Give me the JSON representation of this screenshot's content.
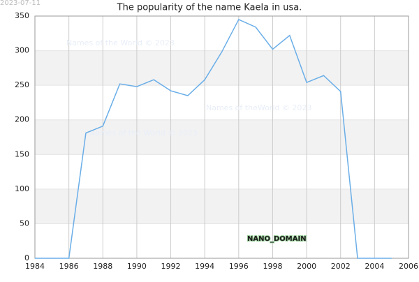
{
  "chart_data": {
    "type": "line",
    "title": "The popularity of the name Kaela in usa.",
    "x": [
      1984,
      1985,
      1986,
      1987,
      1988,
      1989,
      1990,
      1991,
      1992,
      1993,
      1994,
      1995,
      1996,
      1997,
      1998,
      1999,
      2000,
      2001,
      2002,
      2003,
      2004,
      2005
    ],
    "series": [
      {
        "name": "Kaela",
        "color": "#6aaee8",
        "values": [
          0,
          0,
          0,
          181,
          191,
          252,
          248,
          258,
          242,
          235,
          258,
          298,
          345,
          334,
          302,
          322,
          254,
          264,
          241,
          0,
          0,
          0
        ]
      }
    ],
    "xlim": [
      1984,
      2006
    ],
    "xticks": [
      1984,
      1986,
      1988,
      1990,
      1992,
      1994,
      1996,
      1998,
      2000,
      2002,
      2004,
      2006
    ],
    "ylim": [
      0,
      350
    ],
    "yticks": [
      0,
      50,
      100,
      150,
      200,
      250,
      300,
      350
    ],
    "grid": true,
    "annotations": [
      "2023-07-11",
      "Names of the World © 2023",
      "Names of theWorld © 2023",
      "Names of the World © 2023",
      "NANO_DOMAIN"
    ]
  }
}
